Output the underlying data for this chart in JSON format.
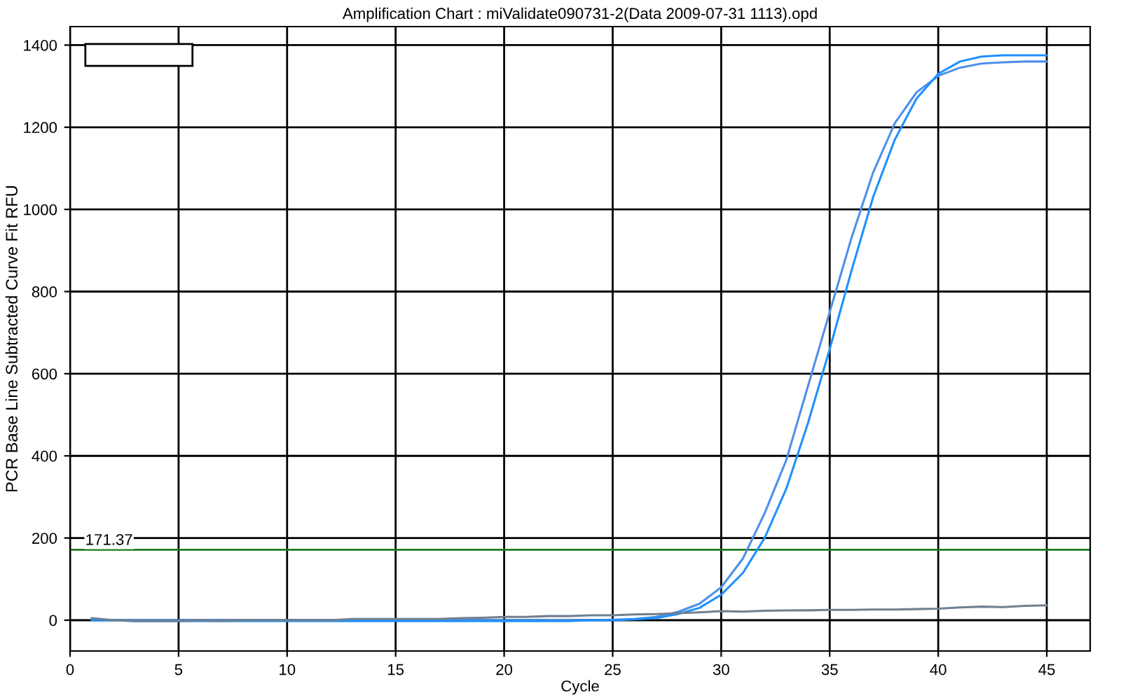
{
  "chart_data": {
    "type": "line",
    "title": "Amplification Chart : miValidate090731-2(Data 2009-07-31 1113).opd",
    "xlabel": "Cycle",
    "ylabel": "PCR Base Line Subtracted Curve Fit RFU",
    "x": [
      1,
      2,
      3,
      4,
      5,
      6,
      7,
      8,
      9,
      10,
      11,
      12,
      13,
      14,
      15,
      16,
      17,
      18,
      19,
      20,
      21,
      22,
      23,
      24,
      25,
      26,
      27,
      28,
      29,
      30,
      31,
      32,
      33,
      34,
      35,
      36,
      37,
      38,
      39,
      40,
      41,
      42,
      43,
      44,
      45
    ],
    "series": [
      {
        "color": "#4f8fe8",
        "values": [
          0,
          0,
          0,
          0,
          0,
          0,
          0,
          0,
          0,
          0,
          0,
          0,
          0,
          0,
          0,
          0,
          0,
          0,
          0,
          0,
          0,
          0,
          0,
          0,
          1,
          3,
          8,
          20,
          40,
          80,
          150,
          260,
          390,
          570,
          750,
          930,
          1090,
          1210,
          1285,
          1325,
          1345,
          1355,
          1358,
          1360,
          1360
        ]
      },
      {
        "color": "#1e90ff",
        "values": [
          0,
          0,
          -2,
          -2,
          -2,
          -2,
          -2,
          -2,
          -2,
          -2,
          -2,
          -2,
          -2,
          -2,
          -2,
          -2,
          -2,
          -2,
          -2,
          -2,
          -2,
          -2,
          -2,
          0,
          0,
          2,
          5,
          15,
          30,
          62,
          115,
          200,
          320,
          480,
          660,
          850,
          1030,
          1170,
          1270,
          1330,
          1360,
          1372,
          1375,
          1375,
          1375
        ]
      },
      {
        "color": "#708090",
        "values": [
          5,
          0,
          -2,
          -2,
          -2,
          0,
          -2,
          0,
          0,
          0,
          0,
          0,
          3,
          3,
          3,
          3,
          3,
          5,
          6,
          8,
          8,
          10,
          10,
          12,
          12,
          14,
          15,
          17,
          19,
          22,
          21,
          23,
          24,
          24,
          25,
          25,
          26,
          26,
          27,
          28,
          31,
          33,
          32,
          35,
          36
        ]
      }
    ],
    "xlim": [
      0,
      47
    ],
    "ylim": [
      -75,
      1445
    ],
    "xticks": [
      0,
      5,
      10,
      15,
      20,
      25,
      30,
      35,
      40,
      45
    ],
    "yticks": [
      0,
      200,
      400,
      600,
      800,
      1000,
      1200,
      1400
    ],
    "grid": true,
    "marker": "none",
    "line_style": "solid",
    "ref_lines": [
      {
        "axis": "y",
        "value": 171.37,
        "label": "171.37",
        "color": "#1a7a1a",
        "line_style": "solid"
      }
    ]
  }
}
